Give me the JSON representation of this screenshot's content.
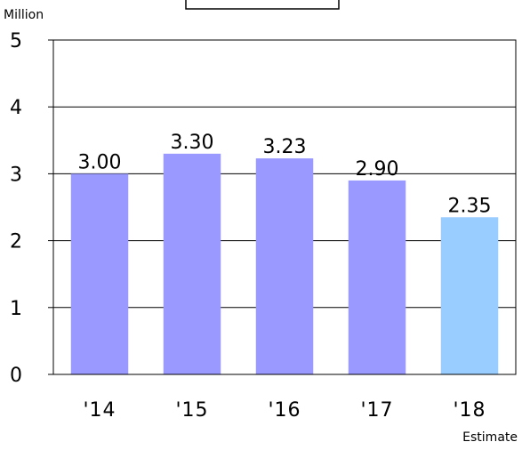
{
  "chart_data": {
    "type": "bar",
    "title": "",
    "unit_label": "Million",
    "categories": [
      "'14",
      "'15",
      "'16",
      "'17",
      "'18"
    ],
    "values": [
      3.0,
      3.3,
      3.23,
      2.9,
      2.35
    ],
    "value_labels": [
      "3.00",
      "3.30",
      "3.23",
      "2.90",
      "2.35"
    ],
    "y_ticks": [
      "0",
      "1",
      "2",
      "3",
      "4",
      "5"
    ],
    "ylim": [
      0,
      5
    ],
    "grid": true,
    "bar_colors": [
      "#9999ff",
      "#9999ff",
      "#9999ff",
      "#9999ff",
      "#99ccff"
    ],
    "footnote": "Estimate"
  }
}
